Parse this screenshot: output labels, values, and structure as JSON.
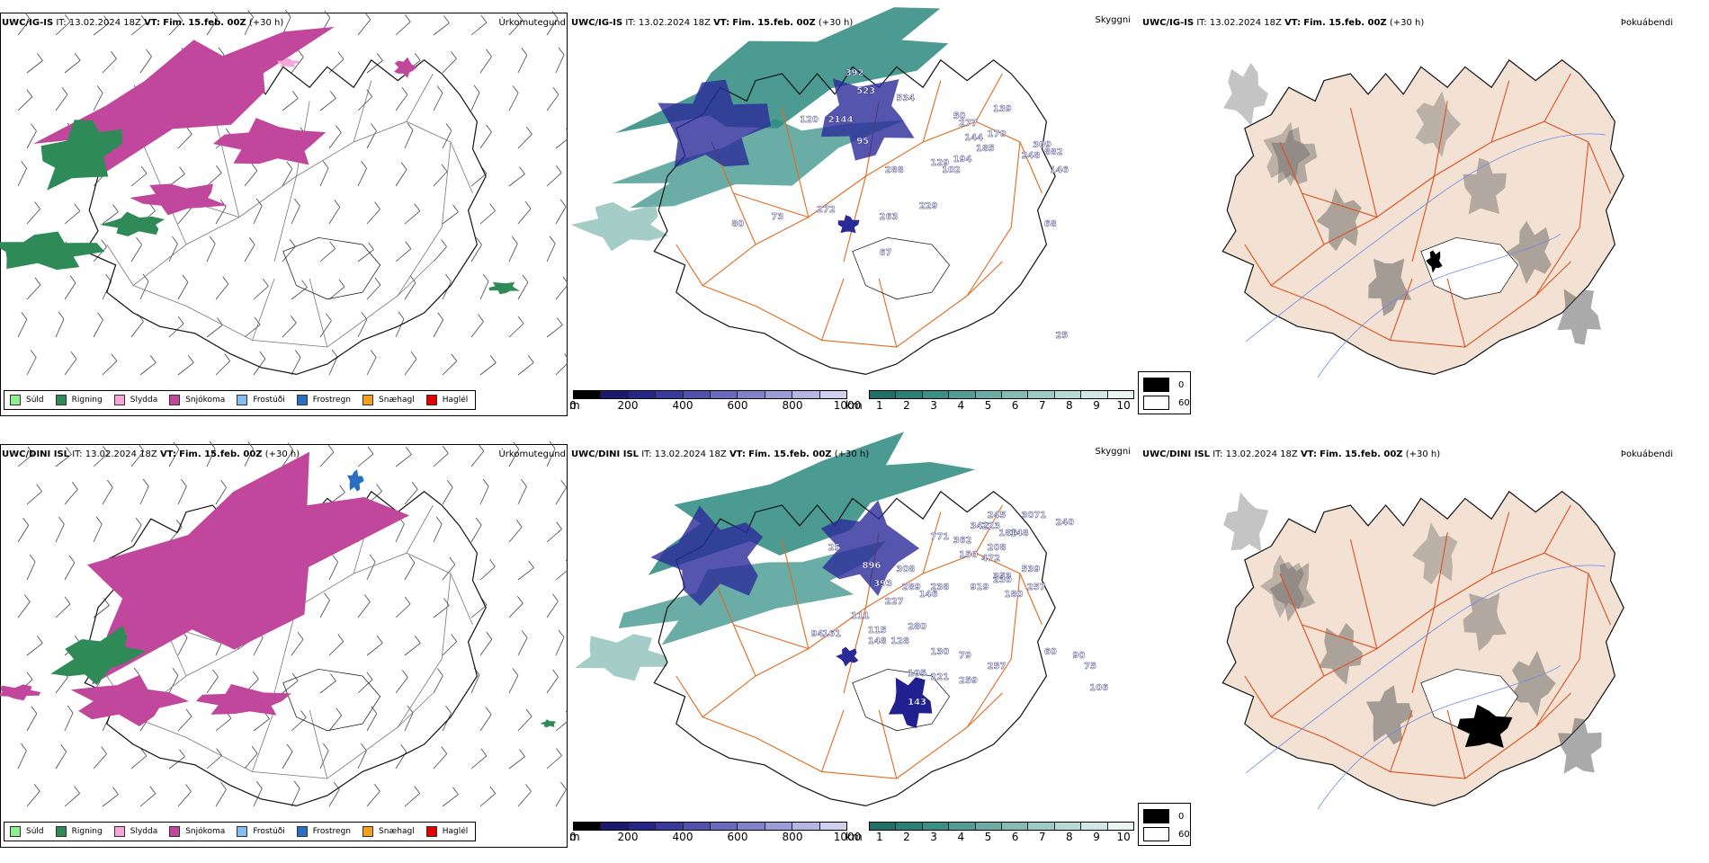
{
  "rows": [
    {
      "id": "igis",
      "model": "UWC/IG-IS",
      "it_label": "IT:",
      "it_value": "13.02.2024 18Z",
      "vt_label": "VT:",
      "vt_value": "Fim. 15.feb. 00Z",
      "lead": "(+30 h)",
      "precip_title": "Úrkomutegund",
      "cloud_title": "Skyggni",
      "fog_title": "Þokuábendi",
      "labels": [
        [
          "392",
          0.58,
          0.1
        ],
        [
          "523",
          0.6,
          0.15
        ],
        [
          "534",
          0.67,
          0.17
        ],
        [
          "2144",
          0.55,
          0.23
        ],
        [
          "95",
          0.6,
          0.29
        ],
        [
          "120",
          0.5,
          0.23
        ],
        [
          "288",
          0.65,
          0.37
        ],
        [
          "229",
          0.71,
          0.47
        ],
        [
          "263",
          0.64,
          0.5
        ],
        [
          "272",
          0.53,
          0.48
        ],
        [
          "73",
          0.45,
          0.5
        ],
        [
          "80",
          0.38,
          0.52
        ],
        [
          "67",
          0.64,
          0.6
        ],
        [
          "50",
          0.77,
          0.22
        ],
        [
          "139",
          0.84,
          0.2
        ],
        [
          "277",
          0.78,
          0.24
        ],
        [
          "170",
          0.83,
          0.27
        ],
        [
          "144",
          0.79,
          0.28
        ],
        [
          "185",
          0.81,
          0.31
        ],
        [
          "194",
          0.77,
          0.34
        ],
        [
          "248",
          0.89,
          0.33
        ],
        [
          "882",
          0.93,
          0.32
        ],
        [
          "309",
          0.91,
          0.3
        ],
        [
          "129",
          0.73,
          0.35
        ],
        [
          "102",
          0.75,
          0.37
        ],
        [
          "146",
          0.94,
          0.37
        ],
        [
          "68",
          0.93,
          0.52
        ],
        [
          "25",
          0.95,
          0.83
        ]
      ]
    },
    {
      "id": "dini",
      "model": "UWC/DINI ISL",
      "it_label": "IT:",
      "it_value": "13.02.2024 18Z",
      "vt_label": "VT:",
      "vt_value": "Fim. 15.feb. 00Z",
      "lead": "(+30 h)",
      "precip_title": "Úrkomutegund",
      "cloud_title": "Skyggni",
      "fog_title": "Þokuábendi",
      "labels": [
        [
          "245",
          0.83,
          0.13
        ],
        [
          "3071",
          0.89,
          0.13
        ],
        [
          "240",
          0.95,
          0.15
        ],
        [
          "342",
          0.8,
          0.16
        ],
        [
          "223",
          0.82,
          0.16
        ],
        [
          "185",
          0.85,
          0.18
        ],
        [
          "148",
          0.87,
          0.18
        ],
        [
          "771",
          0.73,
          0.19
        ],
        [
          "362",
          0.77,
          0.2
        ],
        [
          "208",
          0.83,
          0.22
        ],
        [
          "472",
          0.82,
          0.25
        ],
        [
          "539",
          0.89,
          0.28
        ],
        [
          "150",
          0.78,
          0.24
        ],
        [
          "308",
          0.67,
          0.28
        ],
        [
          "896",
          0.61,
          0.27
        ],
        [
          "353",
          0.84,
          0.3
        ],
        [
          "230",
          0.84,
          0.31
        ],
        [
          "393",
          0.63,
          0.32
        ],
        [
          "289",
          0.68,
          0.33
        ],
        [
          "238",
          0.73,
          0.33
        ],
        [
          "919",
          0.8,
          0.33
        ],
        [
          "146",
          0.71,
          0.35
        ],
        [
          "180",
          0.86,
          0.35
        ],
        [
          "257",
          0.9,
          0.33
        ],
        [
          "227",
          0.65,
          0.37
        ],
        [
          "111",
          0.59,
          0.41
        ],
        [
          "280",
          0.69,
          0.44
        ],
        [
          "115",
          0.62,
          0.45
        ],
        [
          "148",
          0.62,
          0.48
        ],
        [
          "128",
          0.66,
          0.48
        ],
        [
          "94",
          0.52,
          0.46
        ],
        [
          "161",
          0.54,
          0.46
        ],
        [
          "60",
          0.93,
          0.51
        ],
        [
          "130",
          0.73,
          0.51
        ],
        [
          "79",
          0.78,
          0.52
        ],
        [
          "257",
          0.83,
          0.55
        ],
        [
          "90",
          0.98,
          0.52
        ],
        [
          "75",
          1.0,
          0.55
        ],
        [
          "105",
          0.69,
          0.57
        ],
        [
          "221",
          0.73,
          0.58
        ],
        [
          "259",
          0.78,
          0.59
        ],
        [
          "143",
          0.69,
          0.65
        ],
        [
          "106",
          1.01,
          0.61
        ],
        [
          "25",
          0.55,
          0.22
        ]
      ]
    }
  ],
  "precip_legend": [
    {
      "label": "Súld",
      "color": "#90ee90"
    },
    {
      "label": "Rigning",
      "color": "#2e8b57"
    },
    {
      "label": "Slydda",
      "color": "#f4a6d7"
    },
    {
      "label": "Snjókoma",
      "color": "#c0479c"
    },
    {
      "label": "Frostúði",
      "color": "#87bdf0"
    },
    {
      "label": "Frostregn",
      "color": "#2a6fc2"
    },
    {
      "label": "Snæhagl",
      "color": "#f0a020"
    },
    {
      "label": "Haglél",
      "color": "#e00000"
    }
  ],
  "ceiling_bar": {
    "unit": "m",
    "ticks": [
      "0",
      "200",
      "400",
      "600",
      "800",
      "1000"
    ],
    "colors": [
      "#000000",
      "#1a1a6e",
      "#25258a",
      "#3a3a9e",
      "#5252ae",
      "#6a6abe",
      "#8282cc",
      "#9c9cd8",
      "#b6b6e4",
      "#d0d0ee"
    ]
  },
  "visibility_bar": {
    "unit": "km",
    "ticks": [
      "1",
      "2",
      "3",
      "4",
      "5",
      "6",
      "7",
      "8",
      "9",
      "10"
    ],
    "colors": [
      "#1f6f6a",
      "#2b7f79",
      "#3b8f88",
      "#529e97",
      "#6aada6",
      "#82bcb5",
      "#9ccbc5",
      "#b6dad5",
      "#d0e8e4",
      "#eaf4f2"
    ]
  },
  "cover_legend": [
    {
      "label": "0",
      "color": "#000000"
    },
    {
      "label": "60",
      "color": "#ffffff"
    }
  ],
  "colors": {
    "snow": "#c0479c",
    "rain": "#2e8b57",
    "cloud_teal": "#2b8a80",
    "ceiling_blue": "#2b2b98",
    "roads": "#e06a20",
    "terrain": "#f3e2d3",
    "rivers": "#6f86e8"
  }
}
